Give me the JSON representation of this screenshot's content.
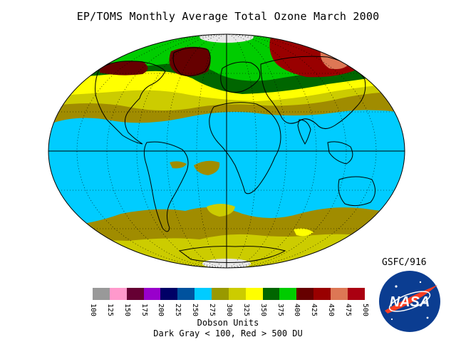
{
  "title": "EP/TOMS Monthly Average Total Ozone March 2000",
  "credit": "GSFC/916",
  "legend": {
    "units_label": "Dobson Units",
    "note": "Dark Gray < 100, Red > 500 DU",
    "ticks": [
      "100",
      "125",
      "150",
      "175",
      "200",
      "225",
      "250",
      "275",
      "300",
      "325",
      "350",
      "375",
      "400",
      "425",
      "450",
      "475",
      "500"
    ],
    "colors": [
      "#999999",
      "#ff99cc",
      "#660033",
      "#9900cc",
      "#000066",
      "#00529e",
      "#00ccff",
      "#999900",
      "#cccc00",
      "#ffff00",
      "#006600",
      "#00cc00",
      "#660000",
      "#990000",
      "#dd7755",
      "#aa0011"
    ]
  },
  "logo": {
    "text": "NASA"
  },
  "colors": {
    "ocean_band": "#00ccff",
    "olive_band": "#a08c00",
    "yellow_olive": "#cccc00",
    "bright_yellow": "#ffff00",
    "dark_green": "#006600",
    "green": "#00cc00",
    "dark_red": "#660000",
    "red": "#990000",
    "salmon": "#dd7755"
  }
}
